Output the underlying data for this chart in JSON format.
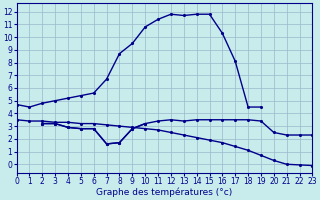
{
  "xlabel": "Graphe des températures (°c)",
  "xlim": [
    0,
    23
  ],
  "ylim": [
    -0.7,
    12.7
  ],
  "yticks": [
    0,
    1,
    2,
    3,
    4,
    5,
    6,
    7,
    8,
    9,
    10,
    11,
    12
  ],
  "xticks": [
    0,
    1,
    2,
    3,
    4,
    5,
    6,
    7,
    8,
    9,
    10,
    11,
    12,
    13,
    14,
    15,
    16,
    17,
    18,
    19,
    20,
    21,
    22,
    23
  ],
  "background_color": "#c8ecec",
  "grid_color": "#9ab8cc",
  "line_color": "#00008b",
  "line_width": 1.0,
  "marker_size": 2.5,
  "curve1_x": [
    0,
    1,
    2,
    3,
    4,
    5,
    6,
    7,
    8,
    9,
    10,
    11,
    12,
    13,
    14,
    15,
    16,
    17,
    18,
    19
  ],
  "curve1_y": [
    4.7,
    4.5,
    4.8,
    5.0,
    5.2,
    5.4,
    5.6,
    6.7,
    8.7,
    9.5,
    10.8,
    11.4,
    11.8,
    11.7,
    11.8,
    11.8,
    10.3,
    8.1,
    4.5,
    4.5
  ],
  "curve2_x": [
    0,
    1,
    2,
    3,
    4,
    5,
    6,
    7,
    8,
    9,
    10,
    11,
    12,
    13,
    14,
    15,
    16,
    17,
    18,
    19,
    20,
    21,
    22,
    23
  ],
  "curve2_y": [
    3.5,
    3.4,
    3.4,
    3.3,
    3.3,
    3.2,
    3.2,
    3.1,
    3.0,
    2.9,
    2.8,
    2.7,
    2.5,
    2.3,
    2.1,
    1.9,
    1.7,
    1.4,
    1.1,
    0.7,
    0.3,
    0.0,
    -0.05,
    -0.1
  ],
  "curve3_x": [
    2,
    3,
    4,
    5,
    6,
    7,
    8,
    9,
    10,
    11,
    12,
    13,
    14,
    15,
    16,
    17,
    18,
    19,
    20,
    21,
    22,
    23
  ],
  "curve3_y": [
    3.2,
    3.2,
    2.9,
    2.8,
    2.8,
    1.6,
    1.7,
    2.8,
    3.2,
    3.4,
    3.5,
    3.4,
    3.5,
    3.5,
    3.5,
    3.5,
    3.5,
    3.4,
    2.5,
    2.3,
    2.3,
    2.3
  ],
  "curve4_x": [
    2,
    3,
    4,
    5,
    6,
    7,
    8,
    9,
    10
  ],
  "curve4_y": [
    3.2,
    3.2,
    2.9,
    2.8,
    2.8,
    1.6,
    1.7,
    2.8,
    3.2
  ]
}
